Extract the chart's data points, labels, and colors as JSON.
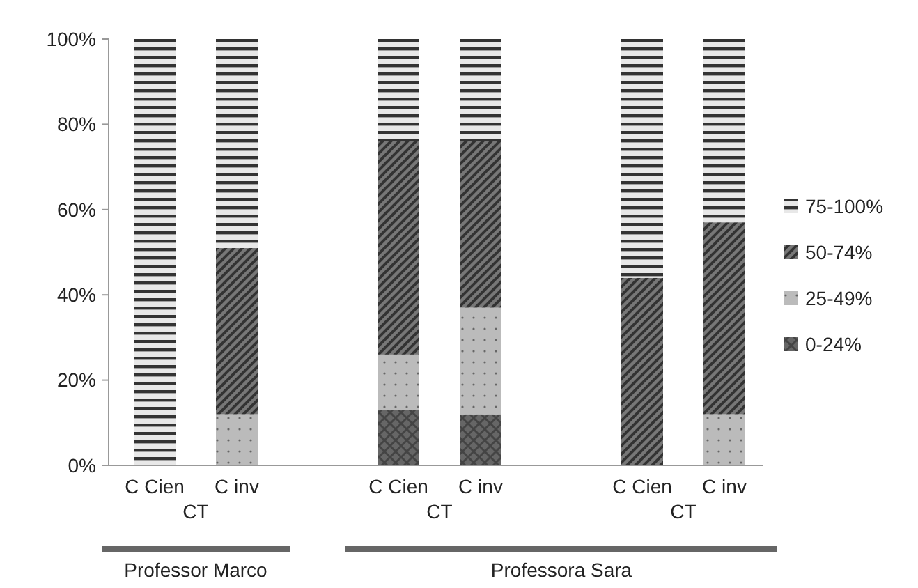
{
  "chart_data": {
    "type": "bar",
    "stacked": true,
    "categories": [
      "C Cien",
      "C inv",
      "C Cien",
      "C inv",
      "C Cien",
      "C inv"
    ],
    "series": [
      {
        "name": "0-24%",
        "color": "#444444",
        "values": [
          0,
          0,
          13,
          12,
          0,
          0
        ]
      },
      {
        "name": "25-49%",
        "color": "#bbbbbb",
        "values": [
          0,
          12,
          13,
          25,
          0,
          12
        ]
      },
      {
        "name": "50-74%",
        "color": "#333333",
        "values": [
          0,
          39,
          50,
          39,
          44,
          45
        ]
      },
      {
        "name": "75-100%",
        "color": "#333333",
        "values": [
          100,
          49,
          24,
          24,
          56,
          43
        ]
      }
    ],
    "ylim": [
      0,
      100
    ],
    "yticks": [
      {
        "value": 0,
        "label": "0%"
      },
      {
        "value": 20,
        "label": "20%"
      },
      {
        "value": 40,
        "label": "40%"
      },
      {
        "value": 60,
        "label": "60%"
      },
      {
        "value": 80,
        "label": "80%"
      },
      {
        "value": 100,
        "label": "100%"
      }
    ],
    "legend": "right",
    "annotations": [
      "CT",
      "CT",
      "CT",
      "Professor Marco",
      "Professora Sara"
    ]
  }
}
